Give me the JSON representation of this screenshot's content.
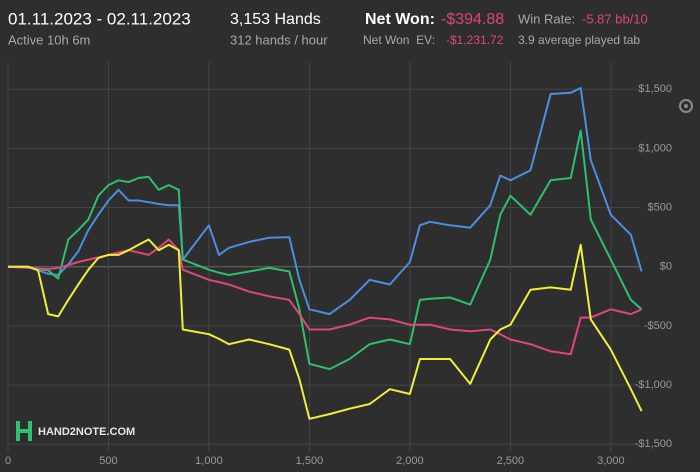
{
  "header": {
    "date_range": "01.11.2023 - 02.11.2023",
    "active": "Active 10h 6m",
    "hands": "3,153 Hands",
    "hands_per_hour": "312 hands / hour",
    "net_won_label": "Net Won:",
    "net_won": "-$394.88",
    "net_won_ev_label": "Net Won  EV:",
    "net_won_ev": "-$1,231.72",
    "win_rate_label": "Win Rate:",
    "win_rate": "-5.87 bb/10",
    "tables": "3.9 average played tab"
  },
  "logo": "HAND2NOTE.COM",
  "chart_data": {
    "type": "line",
    "x": [
      0,
      100,
      150,
      200,
      250,
      300,
      350,
      400,
      450,
      500,
      550,
      600,
      650,
      700,
      750,
      800,
      850,
      870,
      1000,
      1050,
      1100,
      1200,
      1300,
      1400,
      1450,
      1500,
      1600,
      1700,
      1800,
      1900,
      2000,
      2050,
      2100,
      2200,
      2300,
      2400,
      2450,
      2500,
      2600,
      2700,
      2800,
      2850,
      2900,
      3000,
      3100,
      3153
    ],
    "series": [
      {
        "color": "#4a8fe0",
        "values": [
          0,
          0,
          -30,
          -60,
          -70,
          20,
          130,
          310,
          440,
          560,
          650,
          560,
          560,
          545,
          530,
          520,
          520,
          60,
          350,
          100,
          160,
          210,
          245,
          250,
          -110,
          -360,
          -400,
          -280,
          -110,
          -150,
          40,
          350,
          380,
          350,
          330,
          520,
          770,
          730,
          815,
          1460,
          1470,
          1510,
          900,
          440,
          270,
          -40
        ]
      },
      {
        "color": "#2fbf6f",
        "values": [
          0,
          0,
          -20,
          -30,
          -100,
          230,
          310,
          400,
          600,
          690,
          730,
          715,
          750,
          760,
          650,
          690,
          650,
          60,
          -25,
          -50,
          -70,
          -40,
          -10,
          -40,
          -360,
          -820,
          -865,
          -780,
          -655,
          -615,
          -655,
          -280,
          -270,
          -260,
          -320,
          60,
          440,
          600,
          440,
          730,
          750,
          1150,
          400,
          60,
          -280,
          -360
        ]
      },
      {
        "color": "#e0457b",
        "values": [
          0,
          -10,
          -15,
          -20,
          -10,
          15,
          40,
          60,
          80,
          100,
          120,
          140,
          120,
          100,
          160,
          230,
          140,
          -25,
          -110,
          -130,
          -150,
          -210,
          -250,
          -280,
          -400,
          -530,
          -530,
          -490,
          -430,
          -445,
          -490,
          -490,
          -490,
          -530,
          -545,
          -530,
          -570,
          -615,
          -655,
          -715,
          -740,
          -430,
          -430,
          -360,
          -400,
          -360
        ]
      },
      {
        "color": "#f0ef3c",
        "values": [
          0,
          0,
          -30,
          -400,
          -420,
          -280,
          -150,
          -25,
          75,
          100,
          100,
          140,
          185,
          230,
          140,
          185,
          140,
          -530,
          -570,
          -610,
          -655,
          -615,
          -655,
          -700,
          -950,
          -1285,
          -1245,
          -1200,
          -1160,
          -1035,
          -1075,
          -780,
          -780,
          -780,
          -990,
          -615,
          -530,
          -490,
          -195,
          -175,
          -195,
          185,
          -445,
          -700,
          -1035,
          -1220
        ]
      }
    ],
    "xlim": [
      0,
      3160
    ],
    "ylim": [
      -1650,
      1730
    ],
    "xticks": [
      0,
      500,
      {
        "value": 1000,
        "label": "1,000"
      },
      {
        "value": 1500,
        "label": "1,500"
      },
      {
        "value": 2000,
        "label": "2,000"
      },
      {
        "value": 2500,
        "label": "2,500"
      },
      {
        "value": 3000,
        "label": "3,000"
      }
    ],
    "yticks": [
      {
        "value": -1500,
        "label": "-$1,500"
      },
      {
        "value": -1000,
        "label": "-$1,000"
      },
      {
        "value": -500,
        "label": "-$500"
      },
      {
        "value": 0,
        "label": "$0"
      },
      {
        "value": 500,
        "label": "$500"
      },
      {
        "value": 1000,
        "label": "$1,000"
      },
      {
        "value": 1500,
        "label": "$1,500"
      }
    ],
    "grid": true
  }
}
